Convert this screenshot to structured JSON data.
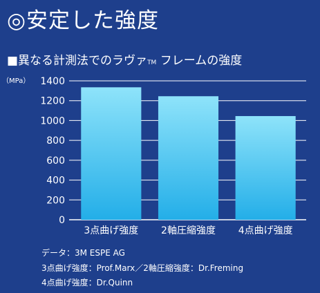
{
  "header": {
    "title": "◎安定した強度",
    "subtitle_main": "■異なる計測法でのラヴァ",
    "subtitle_tm": "TM",
    "subtitle_rest": " フレームの強度"
  },
  "chart_data": {
    "type": "bar",
    "unit_label": "（MPa）",
    "categories": [
      "3点曲げ強度",
      "2軸圧縮強度",
      "4点曲げ強度"
    ],
    "values": [
      1335,
      1245,
      1045
    ],
    "ylim": [
      0,
      1400
    ],
    "yticks": [
      0,
      200,
      400,
      600,
      800,
      1000,
      1200,
      1400
    ],
    "grid": true,
    "colors": {
      "bar_top": "#8ee3fa",
      "bar_bottom": "#23aee8",
      "grid": "#ffffff"
    }
  },
  "footnotes": [
    "データ：3M ESPE AG",
    "3点曲げ強度：Prof.Marx／2軸圧縮強度：Dr.Freming",
    "4点曲げ強度：Dr.Quinn"
  ]
}
